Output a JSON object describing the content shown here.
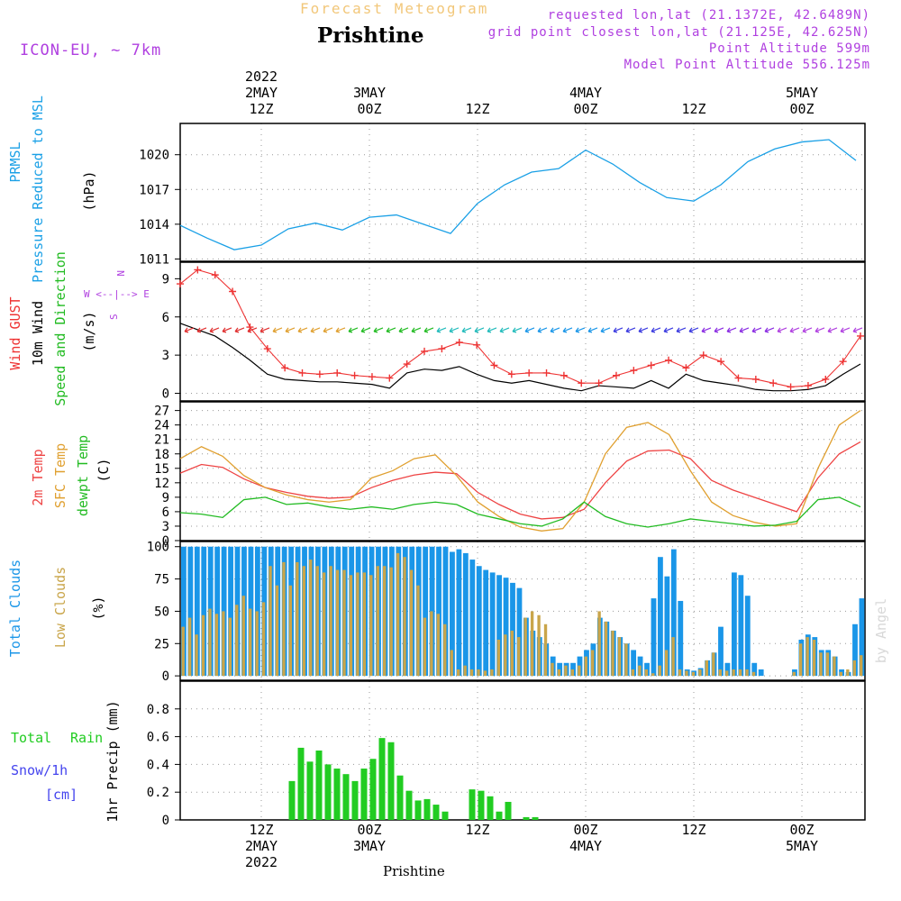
{
  "header": {
    "subtitle": "Forecast Meteogram",
    "location": "Prishtine",
    "model": "ICON-EU, ~ 7km",
    "requested": "requested lon,lat (21.1372E, 42.6489N)",
    "gridpoint": "grid point closest lon,lat (21.125E, 42.625N)",
    "point_alt": "Point Altitude 599m",
    "model_alt": "Model Point Altitude 556.125m"
  },
  "top_time_labels": [
    {
      "h": "12Z",
      "d": "2MAY",
      "y": "2022"
    },
    {
      "h": "00Z",
      "d": "3MAY",
      "y": ""
    },
    {
      "h": "12Z",
      "d": "",
      "y": ""
    },
    {
      "h": "00Z",
      "d": "4MAY",
      "y": ""
    },
    {
      "h": "12Z",
      "d": "",
      "y": ""
    },
    {
      "h": "00Z",
      "d": "5MAY",
      "y": ""
    }
  ],
  "bottom_time_labels": [
    {
      "h": "12Z",
      "d": "2MAY",
      "y": "2022"
    },
    {
      "h": "00Z",
      "d": "3MAY",
      "y": ""
    },
    {
      "h": "12Z",
      "d": "",
      "y": ""
    },
    {
      "h": "00Z",
      "d": "4MAY",
      "y": ""
    },
    {
      "h": "12Z",
      "d": "",
      "y": ""
    },
    {
      "h": "00Z",
      "d": "5MAY",
      "y": ""
    }
  ],
  "footer_label": "Prishtine",
  "byline": "by Angel",
  "panel_labels": {
    "pressure": [
      "PRMSL",
      "Pressure Reduced to MSL",
      "(hPa)"
    ],
    "wind": [
      "Wind GUST",
      "10m Wind",
      "Speed and Direction",
      "(m/s)"
    ],
    "compass": [
      "N",
      "W <--|--> E",
      "S"
    ],
    "temp": [
      "2m Temp",
      "SFC Temp",
      "dewpt Temp",
      "(C)"
    ],
    "clouds": [
      "Total Clouds",
      "Low Clouds",
      "(%)"
    ],
    "precip_left": [
      "Total",
      "Rain",
      "Snow/1h",
      "[cm]"
    ],
    "precip_axis": "1hr Precip (mm)"
  },
  "colors": {
    "pressure": "#1aa0e6",
    "gust": "#ee3333",
    "wind": "#000000",
    "t2m": "#ee4444",
    "tsfc": "#e0a030",
    "dewpt": "#22bb22",
    "total_clouds": "#1a96e8",
    "low_clouds": "#c9a54a",
    "rain": "#22cc22",
    "snow": "#4444ee",
    "purple": "#b040e0"
  },
  "chart_data": [
    {
      "type": "line",
      "panel": "pressure",
      "x_hours": [
        0,
        3,
        6,
        9,
        12,
        15,
        18,
        21,
        24,
        27,
        30,
        33,
        36,
        39,
        42,
        45,
        48,
        51,
        54,
        57,
        60,
        63,
        66,
        69,
        72,
        75
      ],
      "values": [
        1013.9,
        1012.8,
        1011.8,
        1012.2,
        1013.6,
        1014.1,
        1013.5,
        1014.6,
        1014.8,
        1014.0,
        1013.2,
        1015.8,
        1017.4,
        1018.5,
        1018.8,
        1020.4,
        1019.2,
        1017.6,
        1016.3,
        1016.0,
        1017.4,
        1019.4,
        1020.5,
        1021.1,
        1021.3,
        1019.5
      ],
      "yticks": [
        1011,
        1014,
        1017,
        1020
      ],
      "ylim": [
        1010.8,
        1022.7
      ]
    },
    {
      "type": "line",
      "panel": "wind",
      "series": [
        {
          "name": "Wind GUST",
          "marker": "+",
          "values": [
            8.6,
            9.7,
            9.3,
            8.0,
            5.2,
            3.5,
            2.0,
            1.6,
            1.5,
            1.6,
            1.4,
            1.3,
            1.2,
            2.3,
            3.3,
            3.5,
            4.0,
            3.8,
            2.2,
            1.5,
            1.6,
            1.6,
            1.4,
            0.8,
            0.8,
            1.4,
            1.8,
            2.2,
            2.6,
            2.0,
            3.0,
            2.5,
            1.2,
            1.1,
            0.8,
            0.5,
            0.6,
            1.1,
            2.5,
            4.5
          ]
        },
        {
          "name": "10m Wind",
          "values": [
            5.5,
            5.0,
            4.5,
            3.6,
            2.6,
            1.5,
            1.1,
            1.0,
            0.9,
            0.9,
            0.8,
            0.7,
            0.4,
            1.6,
            1.9,
            1.8,
            2.1,
            1.5,
            1.0,
            0.8,
            1.0,
            0.7,
            0.4,
            0.2,
            0.6,
            0.5,
            0.4,
            1.0,
            0.4,
            1.5,
            1.0,
            0.8,
            0.6,
            0.3,
            0.2,
            0.2,
            0.3,
            0.6,
            1.5,
            2.3
          ]
        }
      ],
      "arrow_level": 5.0,
      "yticks": [
        0,
        3,
        6,
        9
      ],
      "ylim": [
        -0.6,
        10.3
      ]
    },
    {
      "type": "line",
      "panel": "temp",
      "series": [
        {
          "name": "2m Temp",
          "values": [
            14.0,
            15.8,
            15.2,
            12.8,
            11.0,
            10.0,
            9.2,
            8.8,
            9.0,
            11.0,
            12.5,
            13.6,
            14.2,
            13.9,
            10.0,
            7.5,
            5.5,
            4.5,
            4.8,
            6.5,
            12.0,
            16.5,
            18.6,
            18.8,
            17.0,
            12.5,
            10.5,
            9.0,
            7.5,
            6.0,
            13.0,
            18.0,
            20.5
          ]
        },
        {
          "name": "SFC Temp",
          "values": [
            17.0,
            19.5,
            17.5,
            13.5,
            11.0,
            9.5,
            8.5,
            8.0,
            8.5,
            13.0,
            14.5,
            17.0,
            17.8,
            13.5,
            8.0,
            5.0,
            2.8,
            2.0,
            2.5,
            8.0,
            18.0,
            23.5,
            24.5,
            22.0,
            14.5,
            8.0,
            5.2,
            3.8,
            3.0,
            3.5,
            15.0,
            24.0,
            27.0
          ]
        },
        {
          "name": "dewpt Temp",
          "values": [
            5.8,
            5.5,
            4.8,
            8.5,
            9.0,
            7.5,
            7.8,
            7.0,
            6.5,
            7.0,
            6.5,
            7.5,
            8.0,
            7.5,
            5.5,
            4.5,
            3.5,
            3.0,
            4.5,
            8.0,
            5.0,
            3.5,
            2.8,
            3.5,
            4.5,
            4.0,
            3.5,
            3.0,
            3.2,
            4.0,
            8.5,
            9.0,
            7.0
          ]
        }
      ],
      "yticks": [
        0,
        3,
        6,
        9,
        12,
        15,
        18,
        21,
        24,
        27
      ],
      "ylim": [
        0,
        28.8
      ]
    },
    {
      "type": "bar",
      "panel": "clouds",
      "series": [
        {
          "name": "Total Clouds",
          "values": [
            100,
            100,
            100,
            100,
            100,
            100,
            100,
            100,
            100,
            100,
            100,
            100,
            100,
            100,
            100,
            100,
            100,
            100,
            100,
            100,
            100,
            100,
            100,
            100,
            100,
            100,
            100,
            100,
            100,
            100,
            100,
            100,
            100,
            100,
            100,
            100,
            100,
            100,
            100,
            100,
            96,
            98,
            95,
            90,
            85,
            82,
            80,
            78,
            76,
            72,
            68,
            45,
            35,
            30,
            25,
            15,
            10,
            10,
            10,
            15,
            20,
            25,
            45,
            42,
            35,
            30,
            25,
            20,
            15,
            10,
            60,
            92,
            77,
            98,
            58,
            5,
            4,
            6,
            12,
            18,
            38,
            10,
            80,
            78,
            62,
            10,
            5,
            0,
            0,
            0,
            0,
            5,
            28,
            32,
            30,
            20,
            20,
            15,
            5,
            3,
            40,
            60
          ]
        },
        {
          "name": "Low Clouds",
          "values": [
            38,
            45,
            32,
            47,
            52,
            48,
            50,
            45,
            55,
            62,
            52,
            50,
            57,
            85,
            70,
            88,
            70,
            88,
            85,
            90,
            85,
            80,
            85,
            82,
            82,
            78,
            80,
            80,
            78,
            85,
            85,
            84,
            95,
            92,
            82,
            70,
            45,
            50,
            48,
            40,
            20,
            5,
            8,
            5,
            5,
            4,
            5,
            28,
            32,
            35,
            30,
            45,
            50,
            47,
            40,
            10,
            5,
            8,
            5,
            8,
            15,
            20,
            50,
            42,
            35,
            30,
            25,
            5,
            8,
            5,
            2,
            8,
            20,
            30,
            5,
            4,
            3,
            5,
            12,
            18,
            5,
            4,
            5,
            5,
            5,
            3,
            0,
            0,
            0,
            0,
            0,
            3,
            25,
            30,
            28,
            18,
            18,
            15,
            3,
            5,
            12,
            16
          ]
        }
      ],
      "yticks": [
        0,
        25,
        50,
        75,
        100
      ],
      "ylim": [
        -3.4,
        104
      ]
    },
    {
      "type": "bar",
      "panel": "precip",
      "series": [
        {
          "name": "Total Rain",
          "values": [
            0,
            0,
            0,
            0,
            0,
            0,
            0.28,
            0.52,
            0.42,
            0.5,
            0.4,
            0.37,
            0.33,
            0.28,
            0.37,
            0.44,
            0.59,
            0.56,
            0.32,
            0.21,
            0.14,
            0.15,
            0.11,
            0.06,
            0,
            0,
            0.22,
            0.21,
            0.17,
            0.06,
            0.13,
            0,
            0.02,
            0.02,
            0,
            0
          ]
        }
      ],
      "yticks": [
        0,
        0.2,
        0.4,
        0.6,
        0.8
      ],
      "ylim": [
        0,
        1.0
      ]
    }
  ]
}
